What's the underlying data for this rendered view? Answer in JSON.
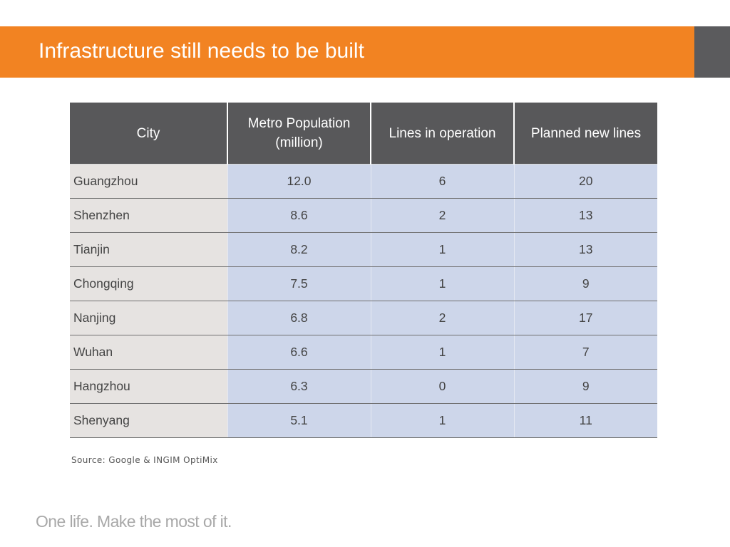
{
  "slide": {
    "title": "Infrastructure still needs to be built",
    "source": "Source: Google & INGIM OptiMix",
    "tagline": "One life. Make the most of it.",
    "colors": {
      "title_bar": "#f28322",
      "title_side": "#5b5b5d",
      "header_bg": "#58585a",
      "city_bg": "#e6e3e1",
      "value_bg": "#cdd6ea"
    }
  },
  "table": {
    "headers": [
      "City",
      "Metro Population (million)",
      "Lines in operation",
      "Planned new lines"
    ],
    "rows": [
      [
        "Guangzhou",
        "12.0",
        "6",
        "20"
      ],
      [
        "Shenzhen",
        "8.6",
        "2",
        "13"
      ],
      [
        "Tianjin",
        "8.2",
        "1",
        "13"
      ],
      [
        "Chongqing",
        "7.5",
        "1",
        "9"
      ],
      [
        "Nanjing",
        "6.8",
        "2",
        "17"
      ],
      [
        "Wuhan",
        "6.6",
        "1",
        "7"
      ],
      [
        "Hangzhou",
        "6.3",
        "0",
        "9"
      ],
      [
        "Shenyang",
        "5.1",
        "1",
        "11"
      ]
    ]
  }
}
